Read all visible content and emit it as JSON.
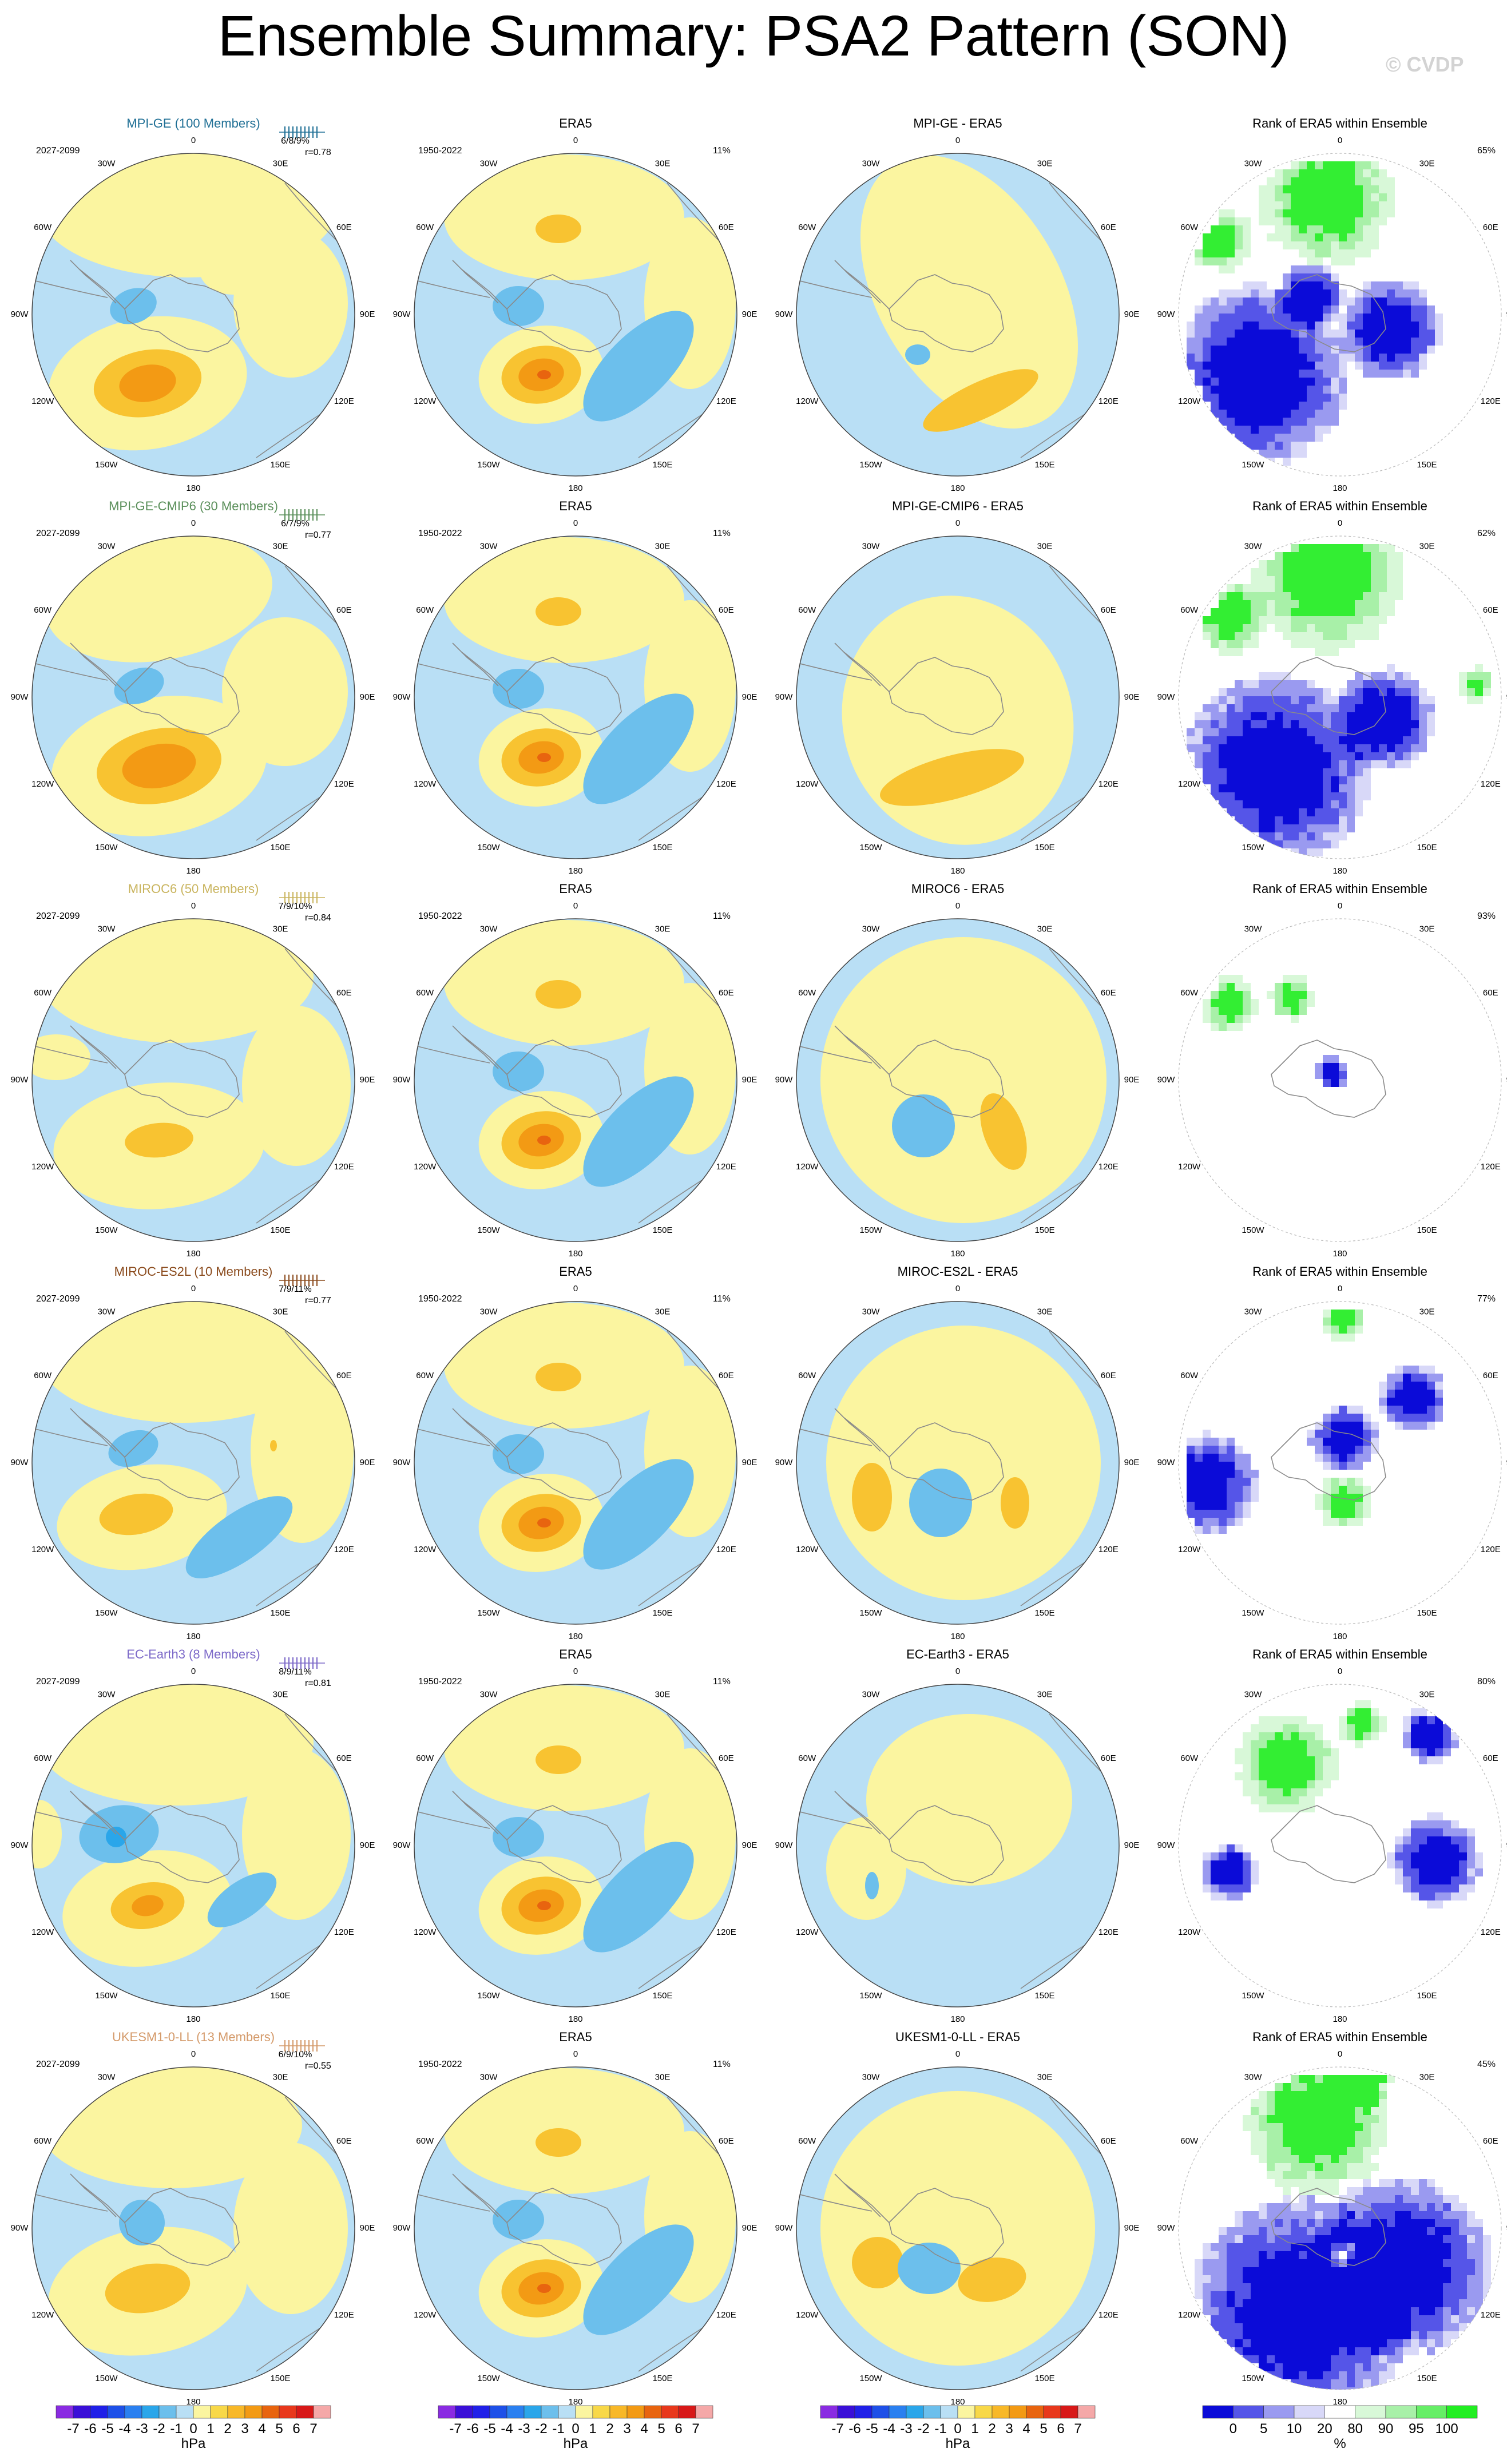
{
  "title": "Ensemble Summary: PSA2 Pattern (SON)",
  "watermark": "© CVDP",
  "lon_labels": [
    "0",
    "30E",
    "60E",
    "90E",
    "120E",
    "150E",
    "180",
    "150W",
    "120W",
    "90W",
    "60W",
    "30W"
  ],
  "colors": {
    "land_outline": "#8a8a8a",
    "ocean_neg1": "#b9dff5",
    "pos1": "#fbf5a0",
    "pos2": "#f8c331",
    "pos3": "#f39a14",
    "pos4": "#e8640f",
    "neg2": "#6cbfec",
    "neg3": "#2aa6ea",
    "rank_green": "#33ee33",
    "rank_blue": "#0b0bd8"
  },
  "chart_data": {
    "type": "heatmap",
    "rows": [
      {
        "model": "MPI-GE (100 Members)",
        "model_color": "#1f6f95",
        "years": "2027-2099",
        "stats": "6/8/9%",
        "corr": "r=0.78",
        "diff_title": "MPI-GE - ERA5",
        "rank_pct": "65%"
      },
      {
        "model": "MPI-GE-CMIP6 (30 Members)",
        "model_color": "#5a8f5a",
        "years": "2027-2099",
        "stats": "6/7/9%",
        "corr": "r=0.77",
        "diff_title": "MPI-GE-CMIP6 - ERA5",
        "rank_pct": "62%"
      },
      {
        "model": "MIROC6 (50 Members)",
        "model_color": "#c9b45e",
        "years": "2027-2099",
        "stats": "7/9/10%",
        "corr": "r=0.84",
        "diff_title": "MIROC6 - ERA5",
        "rank_pct": "93%"
      },
      {
        "model": "MIROC-ES2L (10 Members)",
        "model_color": "#8a4a1c",
        "years": "2027-2099",
        "stats": "7/9/11%",
        "corr": "r=0.77",
        "diff_title": "MIROC-ES2L - ERA5",
        "rank_pct": "77%"
      },
      {
        "model": "EC-Earth3 (8 Members)",
        "model_color": "#7b68c8",
        "years": "2027-2099",
        "stats": "8/9/11%",
        "corr": "r=0.81",
        "diff_title": "EC-Earth3 - ERA5",
        "rank_pct": "80%"
      },
      {
        "model": "UKESM1-0-LL (13 Members)",
        "model_color": "#d49a6a",
        "years": "2027-2099",
        "stats": "6/9/10%",
        "corr": "r=0.55",
        "diff_title": "UKESM1-0-LL - ERA5",
        "rank_pct": "45%"
      }
    ],
    "era5": {
      "title": "ERA5",
      "years": "1950-2022",
      "pct": "11%"
    },
    "rank_title": "Rank of ERA5 within Ensemble",
    "colorbar_hpa": {
      "levels": [
        -7,
        -6,
        -5,
        -4,
        -3,
        -2,
        -1,
        0,
        1,
        2,
        3,
        4,
        5,
        6,
        7
      ],
      "tick_labels": [
        "-7",
        "-6",
        "-5",
        "-4",
        "-3",
        "-2",
        "-1",
        "0",
        "1",
        "2",
        "3",
        "4",
        "5",
        "6",
        "7"
      ],
      "colors": [
        "#8a2be2",
        "#3a0fd8",
        "#2020e8",
        "#1e50e8",
        "#2a80f0",
        "#2aa6ea",
        "#6cbfec",
        "#b9dff5",
        "#fbf5a0",
        "#f8d848",
        "#f8b828",
        "#f39a14",
        "#e8640f",
        "#e8381c",
        "#d81818",
        "#f5a8a8"
      ],
      "unit": "hPa"
    },
    "colorbar_rank": {
      "tick_labels": [
        "0",
        "5",
        "10",
        "20",
        "80",
        "90",
        "95",
        "100"
      ],
      "colors": [
        "#0b0bd8",
        "#5555e8",
        "#9a9af0",
        "#d8d8f8",
        "#ffffff",
        "#d8f8d8",
        "#a8f0a8",
        "#66ee66",
        "#22ee22"
      ],
      "unit": "%"
    }
  }
}
